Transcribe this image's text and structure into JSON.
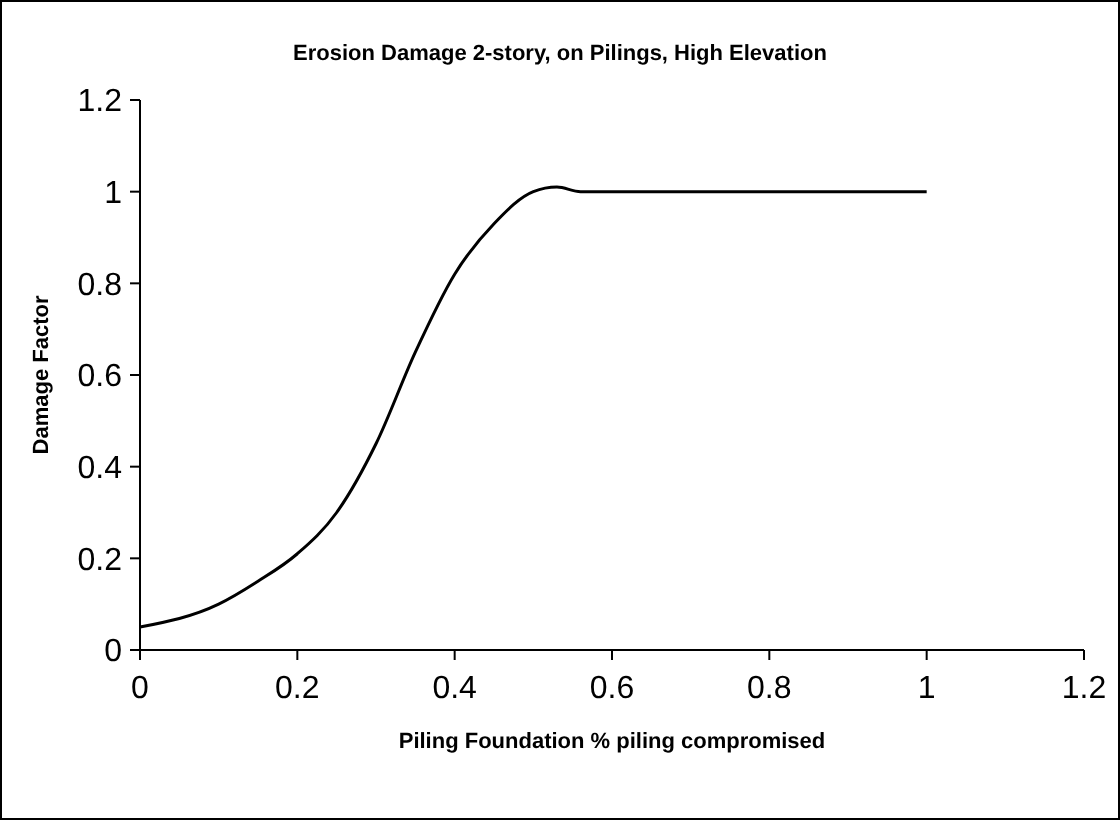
{
  "chart_data": {
    "type": "line",
    "title": "Erosion Damage 2-story, on Pilings, High Elevation",
    "xlabel": "Piling Foundation % piling compromised",
    "ylabel": "Damage Factor",
    "series": [
      {
        "color": "#000000",
        "x": [
          0,
          0.1,
          0.15,
          0.2,
          0.25,
          0.3,
          0.35,
          0.4,
          0.45,
          0.5,
          0.53,
          0.56,
          0.6,
          0.8,
          1.0
        ],
        "values": [
          0.05,
          0.1,
          0.15,
          0.21,
          0.3,
          0.45,
          0.65,
          0.82,
          0.93,
          1.0,
          1.01,
          1.0,
          1.0,
          1.0,
          1.0
        ]
      }
    ],
    "xlim": [
      0,
      1.2
    ],
    "xticks": [
      0,
      0.2,
      0.4,
      0.6,
      0.8,
      1,
      1.2
    ],
    "ylim": [
      0,
      1.2
    ],
    "yticks": [
      0,
      0.2,
      0.4,
      0.6,
      0.8,
      1,
      1.2
    ],
    "grid": false,
    "marker": "none",
    "line_style": "solid"
  }
}
